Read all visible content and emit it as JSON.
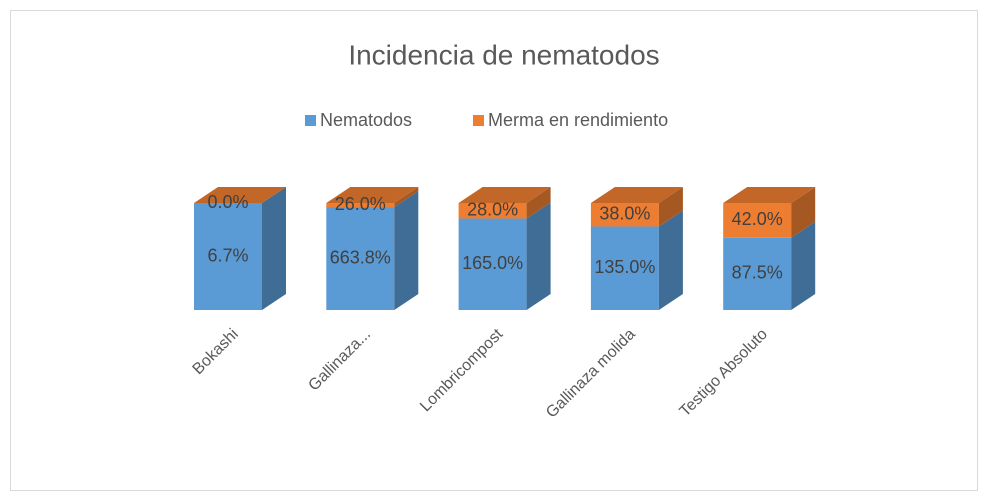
{
  "chart_data": {
    "type": "stacked_percent_bar_3d",
    "title": "Incidencia de nematodos",
    "categories": [
      "Bokashi",
      "Gallinaza...",
      "Lombricompost",
      "Gallinaza molida",
      "Testigo Absoluto"
    ],
    "series": [
      {
        "name": "Nematodos",
        "color": "#5b9bd5",
        "values": [
          6.7,
          663.8,
          165.0,
          135.0,
          87.5
        ],
        "value_labels": [
          "6.7%",
          "663.8%",
          "165.0%",
          "135.0%",
          "87.5%"
        ]
      },
      {
        "name": "Merma en rendimiento",
        "color": "#ed7d31",
        "values": [
          0.0,
          26.0,
          28.0,
          38.0,
          42.0
        ],
        "value_labels": [
          "0.0%",
          "26.0%",
          "28.0%",
          "38.0%",
          "42.0%"
        ]
      }
    ],
    "legend": "top"
  }
}
